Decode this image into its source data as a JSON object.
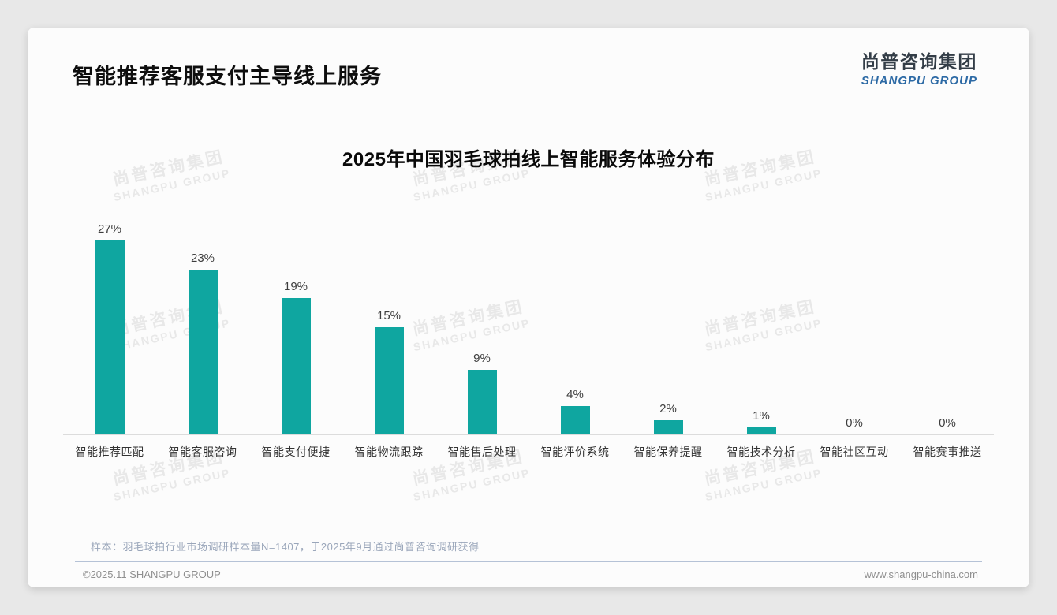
{
  "page": {
    "title": "智能推荐客服支付主导线上服务",
    "logo": {
      "cn": "尚普咨询集团",
      "en": "SHANGPU GROUP"
    },
    "watermark": {
      "cn": "尚普咨询集团",
      "en": "SHANGPU GROUP"
    },
    "footer": {
      "note": "样本：羽毛球拍行业市场调研样本量N=1407，于2025年9月通过尚普咨询调研获得",
      "copyright": "©2025.11 SHANGPU GROUP",
      "website": "www.shangpu-china.com"
    }
  },
  "chart_data": {
    "type": "bar",
    "title": "2025年中国羽毛球拍线上智能服务体验分布",
    "categories": [
      "智能推荐匹配",
      "智能客服咨询",
      "智能支付便捷",
      "智能物流跟踪",
      "智能售后处理",
      "智能评价系统",
      "智能保养提醒",
      "智能技术分析",
      "智能社区互动",
      "智能赛事推送"
    ],
    "values": [
      27,
      23,
      19,
      15,
      9,
      4,
      2,
      1,
      0,
      0
    ],
    "value_labels": [
      "27%",
      "23%",
      "19%",
      "15%",
      "9%",
      "4%",
      "2%",
      "1%",
      "0%",
      "0%"
    ],
    "unit": "%",
    "bar_color": "#0FA6A0",
    "label_color": "#3d3d3d",
    "ylim": [
      0,
      30
    ],
    "grid": false,
    "legend": "none",
    "xlabel": "",
    "ylabel": ""
  }
}
